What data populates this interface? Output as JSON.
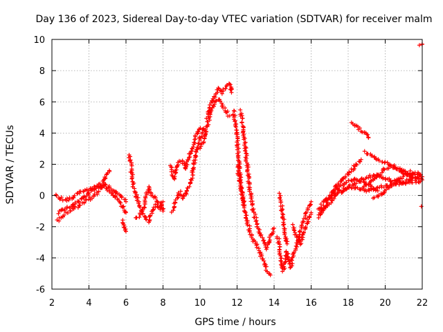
{
  "chart_data": {
    "type": "scatter",
    "title": "Day 136 of 2023, Sidereal Day-to-day VTEC variation (SDTVAR) for receiver malm",
    "xlabel": "GPS time / hours",
    "ylabel": "SDTVAR / TECUs",
    "xlim": [
      2,
      22
    ],
    "ylim": [
      -6,
      10
    ],
    "x_ticks": [
      2,
      4,
      6,
      8,
      10,
      12,
      14,
      16,
      18,
      20,
      22
    ],
    "y_ticks": [
      -6,
      -4,
      -2,
      0,
      2,
      4,
      6,
      8,
      10
    ],
    "grid": true,
    "marker": "+",
    "colors": {
      "points": "#ff0000",
      "grid": "#a0a0a0",
      "axis": "#000000"
    },
    "series": [
      {
        "name": "malm",
        "tracks": [
          [
            [
              2.2,
              0.0
            ],
            [
              2.6,
              -0.3
            ],
            [
              3.0,
              -0.2
            ],
            [
              3.4,
              0.1
            ],
            [
              3.8,
              0.3
            ],
            [
              4.2,
              0.5
            ],
            [
              4.6,
              0.7
            ],
            [
              5.0,
              0.6
            ],
            [
              5.4,
              0.3
            ],
            [
              5.8,
              -0.2
            ],
            [
              6.0,
              -0.4
            ]
          ],
          [
            [
              2.3,
              -1.6
            ],
            [
              2.7,
              -1.2
            ],
            [
              3.1,
              -0.9
            ],
            [
              3.5,
              -0.6
            ],
            [
              3.9,
              -0.3
            ],
            [
              4.3,
              0.0
            ],
            [
              4.6,
              0.4
            ],
            [
              4.9,
              1.1
            ],
            [
              5.1,
              1.6
            ]
          ],
          [
            [
              2.3,
              -1.1
            ],
            [
              2.8,
              -0.8
            ],
            [
              3.2,
              -0.6
            ],
            [
              3.6,
              -0.2
            ],
            [
              4.0,
              0.2
            ],
            [
              4.4,
              0.5
            ],
            [
              4.8,
              0.6
            ],
            [
              5.2,
              0.2
            ],
            [
              5.6,
              -0.4
            ],
            [
              5.9,
              -0.9
            ],
            [
              6.0,
              -1.1
            ]
          ],
          [
            [
              5.8,
              -1.6
            ],
            [
              5.9,
              -2.0
            ],
            [
              6.0,
              -2.3
            ]
          ],
          [
            [
              6.2,
              2.6
            ],
            [
              6.3,
              1.4
            ],
            [
              6.4,
              0.6
            ],
            [
              6.6,
              -0.2
            ],
            [
              6.8,
              -0.8
            ],
            [
              7.0,
              -1.4
            ],
            [
              7.2,
              -1.7
            ],
            [
              7.4,
              -1.1
            ],
            [
              7.6,
              -0.6
            ],
            [
              7.8,
              -0.9
            ],
            [
              8.0,
              -0.4
            ]
          ],
          [
            [
              6.5,
              -1.5
            ],
            [
              6.8,
              -1.2
            ],
            [
              7.0,
              -0.7
            ],
            [
              7.2,
              0.5
            ],
            [
              7.4,
              0.1
            ],
            [
              7.6,
              -0.3
            ],
            [
              7.9,
              -0.6
            ],
            [
              8.0,
              -1.0
            ]
          ],
          [
            [
              8.5,
              -1.1
            ],
            [
              8.7,
              -0.4
            ],
            [
              8.9,
              0.2
            ],
            [
              9.1,
              -0.2
            ],
            [
              9.3,
              0.4
            ],
            [
              9.5,
              0.9
            ],
            [
              9.6,
              1.5
            ],
            [
              9.8,
              2.8
            ],
            [
              10.0,
              3.6
            ],
            [
              10.2,
              4.2
            ]
          ],
          [
            [
              8.4,
              1.9
            ],
            [
              8.6,
              1.1
            ],
            [
              8.8,
              2.1
            ],
            [
              9.0,
              2.3
            ],
            [
              9.2,
              1.7
            ],
            [
              9.4,
              2.5
            ],
            [
              9.6,
              3.1
            ],
            [
              9.8,
              3.9
            ],
            [
              10.0,
              4.3
            ],
            [
              10.2,
              4.3
            ]
          ],
          [
            [
              10.0,
              3.1
            ],
            [
              10.2,
              3.6
            ],
            [
              10.4,
              4.6
            ],
            [
              10.6,
              5.4
            ],
            [
              10.8,
              5.9
            ],
            [
              11.0,
              6.2
            ],
            [
              11.2,
              5.8
            ],
            [
              11.4,
              5.4
            ],
            [
              11.6,
              5.1
            ]
          ],
          [
            [
              10.4,
              5.0
            ],
            [
              10.6,
              5.9
            ],
            [
              10.8,
              6.4
            ],
            [
              11.0,
              6.9
            ],
            [
              11.2,
              6.6
            ],
            [
              11.4,
              6.9
            ],
            [
              11.6,
              7.2
            ],
            [
              11.7,
              6.6
            ]
          ],
          [
            [
              11.8,
              5.4
            ],
            [
              11.9,
              4.6
            ],
            [
              12.0,
              4.1
            ],
            [
              12.1,
              2.1
            ],
            [
              12.2,
              0.7
            ],
            [
              12.3,
              -0.1
            ],
            [
              12.4,
              -0.6
            ]
          ],
          [
            [
              12.0,
              1.9
            ],
            [
              12.2,
              0.5
            ],
            [
              12.4,
              -0.9
            ],
            [
              12.6,
              -1.9
            ],
            [
              12.8,
              -2.6
            ],
            [
              13.0,
              -3.1
            ],
            [
              13.2,
              -3.6
            ],
            [
              13.4,
              -4.1
            ],
            [
              13.6,
              -4.8
            ],
            [
              13.8,
              -5.1
            ]
          ],
          [
            [
              12.2,
              5.4
            ],
            [
              12.4,
              3.6
            ],
            [
              12.6,
              1.4
            ],
            [
              12.8,
              -0.6
            ],
            [
              13.0,
              -1.5
            ],
            [
              13.2,
              -2.3
            ],
            [
              13.4,
              -2.9
            ],
            [
              13.6,
              -3.4
            ],
            [
              13.8,
              -2.6
            ],
            [
              14.0,
              -2.1
            ]
          ],
          [
            [
              14.2,
              -2.6
            ],
            [
              14.3,
              -3.4
            ],
            [
              14.4,
              -4.4
            ],
            [
              14.5,
              -4.8
            ],
            [
              14.6,
              -4.1
            ],
            [
              14.7,
              -3.6
            ],
            [
              14.8,
              -4.3
            ],
            [
              14.9,
              -4.6
            ],
            [
              15.0,
              -3.9
            ],
            [
              15.2,
              -3.4
            ],
            [
              15.4,
              -2.4
            ],
            [
              15.6,
              -1.6
            ],
            [
              15.8,
              -0.9
            ],
            [
              16.0,
              -0.4
            ]
          ],
          [
            [
              14.3,
              0.1
            ],
            [
              14.4,
              -0.6
            ],
            [
              14.5,
              -1.6
            ],
            [
              14.6,
              -2.6
            ],
            [
              14.7,
              -3.1
            ]
          ],
          [
            [
              15.0,
              -1.9
            ],
            [
              15.2,
              -2.6
            ],
            [
              15.4,
              -3.1
            ],
            [
              15.6,
              -2.4
            ],
            [
              15.8,
              -1.6
            ],
            [
              16.0,
              -1.1
            ]
          ],
          [
            [
              16.4,
              -0.9
            ],
            [
              16.8,
              -0.3
            ],
            [
              17.2,
              0.2
            ],
            [
              17.6,
              0.6
            ],
            [
              18.0,
              0.9
            ],
            [
              18.4,
              1.1
            ],
            [
              18.8,
              0.9
            ],
            [
              19.2,
              0.6
            ],
            [
              19.6,
              0.3
            ]
          ],
          [
            [
              16.4,
              -1.4
            ],
            [
              16.8,
              -0.6
            ],
            [
              17.2,
              0.3
            ],
            [
              17.6,
              0.9
            ],
            [
              18.0,
              1.4
            ],
            [
              18.4,
              1.9
            ],
            [
              18.7,
              2.3
            ]
          ],
          [
            [
              16.5,
              -1.1
            ],
            [
              17.0,
              -0.5
            ],
            [
              17.5,
              0.3
            ],
            [
              18.0,
              0.5
            ],
            [
              18.5,
              0.5
            ],
            [
              19.0,
              0.3
            ],
            [
              19.5,
              0.5
            ],
            [
              20.0,
              0.6
            ],
            [
              20.5,
              0.7
            ],
            [
              21.0,
              0.8
            ],
            [
              21.5,
              0.9
            ],
            [
              21.9,
              0.9
            ]
          ],
          [
            [
              17.6,
              0.2
            ],
            [
              18.0,
              0.5
            ],
            [
              18.5,
              0.9
            ],
            [
              19.0,
              1.2
            ],
            [
              19.5,
              1.3
            ],
            [
              20.0,
              1.1
            ],
            [
              20.5,
              0.9
            ],
            [
              21.0,
              0.9
            ],
            [
              21.5,
              1.1
            ],
            [
              21.9,
              1.3
            ]
          ],
          [
            [
              18.2,
              4.6
            ],
            [
              18.6,
              4.3
            ],
            [
              19.0,
              3.9
            ],
            [
              19.1,
              3.7
            ]
          ],
          [
            [
              18.9,
              2.8
            ],
            [
              19.3,
              2.5
            ],
            [
              19.8,
              2.2
            ],
            [
              20.3,
              1.9
            ],
            [
              20.8,
              1.6
            ],
            [
              21.3,
              1.4
            ],
            [
              21.8,
              1.3
            ],
            [
              22.0,
              1.2
            ]
          ],
          [
            [
              19.4,
              -0.1
            ],
            [
              19.8,
              0.1
            ],
            [
              20.2,
              0.5
            ],
            [
              20.6,
              0.9
            ],
            [
              21.0,
              1.2
            ],
            [
              21.4,
              1.5
            ],
            [
              21.8,
              1.4
            ]
          ],
          [
            [
              18.8,
              0.5
            ],
            [
              19.2,
              0.8
            ],
            [
              19.6,
              1.3
            ],
            [
              20.0,
              1.7
            ],
            [
              20.4,
              1.9
            ],
            [
              20.8,
              1.7
            ],
            [
              21.2,
              1.3
            ],
            [
              21.6,
              1.1
            ],
            [
              22.0,
              1.0
            ]
          ],
          [
            [
              21.9,
              9.7
            ],
            [
              22.0,
              9.7
            ]
          ],
          [
            [
              21.95,
              -0.7
            ]
          ]
        ]
      }
    ]
  }
}
